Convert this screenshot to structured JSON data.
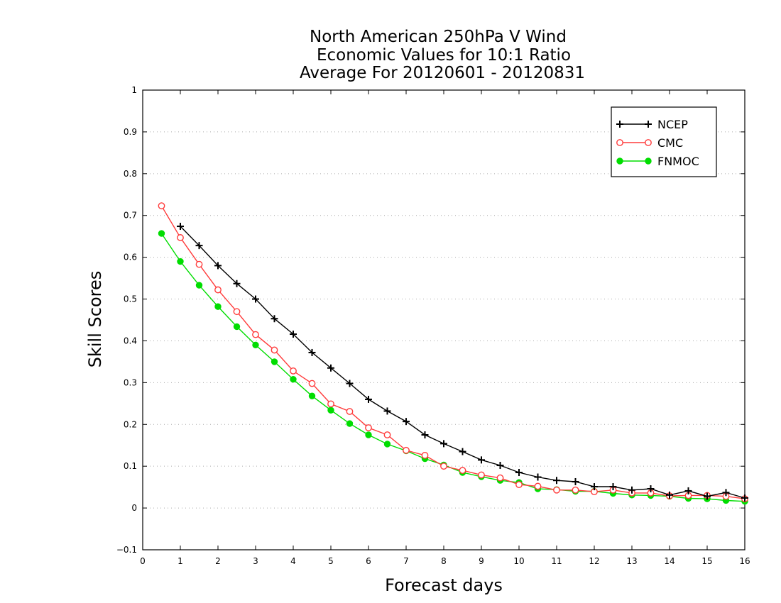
{
  "chart_data": {
    "type": "line",
    "title_lines": [
      "North American 250hPa V Wind",
      "Economic Values for 10:1 Ratio",
      "Average For 20120601 - 20120831"
    ],
    "xlabel": "Forecast days",
    "ylabel": "Skill Scores",
    "xlim": [
      0,
      16
    ],
    "ylim": [
      -0.1,
      1
    ],
    "x_ticks": [
      0,
      1,
      2,
      3,
      4,
      5,
      6,
      7,
      8,
      9,
      10,
      11,
      12,
      13,
      14,
      15,
      16
    ],
    "y_ticks": [
      -0.1,
      0,
      0.1,
      0.2,
      0.3,
      0.4,
      0.5,
      0.6,
      0.7,
      0.8,
      0.9,
      1
    ],
    "y_tick_labels": [
      "−0.1",
      "0",
      "0.1",
      "0.2",
      "0.3",
      "0.4",
      "0.5",
      "0.6",
      "0.7",
      "0.8",
      "0.9",
      "1"
    ],
    "grid": "horizontal dotted",
    "legend_position": "top-right",
    "x": [
      0.5,
      1,
      1.5,
      2,
      2.5,
      3,
      3.5,
      4,
      4.5,
      5,
      5.5,
      6,
      6.5,
      7,
      7.5,
      8,
      8.5,
      9,
      9.5,
      10,
      10.5,
      11,
      11.5,
      12,
      12.5,
      13,
      13.5,
      14,
      14.5,
      15,
      15.5,
      16
    ],
    "series": [
      {
        "name": "NCEP",
        "color": "#000000",
        "marker": "plus",
        "x": [
          1,
          1.5,
          2,
          2.5,
          3,
          3.5,
          4,
          4.5,
          5,
          5.5,
          6,
          6.5,
          7,
          7.5,
          8,
          8.5,
          9,
          9.5,
          10,
          10.5,
          11,
          11.5,
          12,
          12.5,
          13,
          13.5,
          14,
          14.5,
          15,
          15.5,
          16
        ],
        "values": [
          0.674,
          0.628,
          0.58,
          0.537,
          0.5,
          0.453,
          0.416,
          0.372,
          0.335,
          0.298,
          0.26,
          0.232,
          0.207,
          0.175,
          0.154,
          0.135,
          0.115,
          0.102,
          0.085,
          0.074,
          0.066,
          0.063,
          0.051,
          0.051,
          0.043,
          0.046,
          0.031,
          0.041,
          0.028,
          0.037,
          0.024
        ]
      },
      {
        "name": "CMC",
        "color": "#ff3b3b",
        "marker": "open-circle",
        "x": [
          0.5,
          1,
          1.5,
          2,
          2.5,
          3,
          3.5,
          4,
          4.5,
          5,
          5.5,
          6,
          6.5,
          7,
          7.5,
          8,
          8.5,
          9,
          9.5,
          10,
          10.5,
          11,
          11.5,
          12,
          12.5,
          13,
          13.5,
          14,
          14.5,
          15,
          15.5,
          16
        ],
        "values": [
          0.723,
          0.647,
          0.583,
          0.522,
          0.47,
          0.415,
          0.378,
          0.328,
          0.298,
          0.249,
          0.231,
          0.192,
          0.175,
          0.138,
          0.126,
          0.1,
          0.09,
          0.079,
          0.072,
          0.056,
          0.052,
          0.043,
          0.043,
          0.039,
          0.043,
          0.036,
          0.036,
          0.029,
          0.03,
          0.03,
          0.028,
          0.022
        ]
      },
      {
        "name": "FNMOC",
        "color": "#00dd00",
        "marker": "filled-circle",
        "x": [
          0.5,
          1,
          1.5,
          2,
          2.5,
          3,
          3.5,
          4,
          4.5,
          5,
          5.5,
          6,
          6.5,
          7,
          7.5,
          8,
          8.5,
          9,
          9.5,
          10,
          10.5,
          11,
          11.5,
          12,
          12.5,
          13,
          13.5,
          14,
          14.5,
          15,
          15.5,
          16
        ],
        "values": [
          0.657,
          0.59,
          0.533,
          0.482,
          0.434,
          0.39,
          0.35,
          0.308,
          0.268,
          0.234,
          0.202,
          0.175,
          0.153,
          0.137,
          0.118,
          0.103,
          0.085,
          0.075,
          0.066,
          0.061,
          0.046,
          0.044,
          0.04,
          0.04,
          0.035,
          0.031,
          0.03,
          0.028,
          0.023,
          0.022,
          0.018,
          0.016
        ]
      }
    ]
  }
}
